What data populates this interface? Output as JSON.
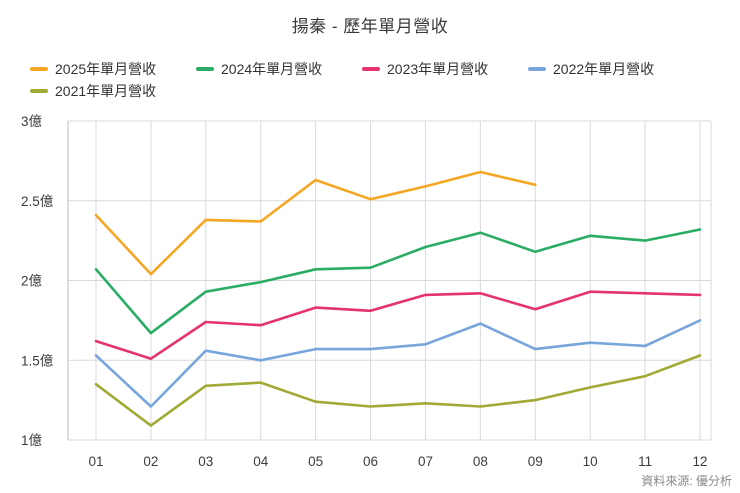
{
  "title": "揚秦 - 歷年單月營收",
  "source": "資料來源: 優分析",
  "chart_data": {
    "type": "line",
    "title": "揚秦 - 歷年單月營收",
    "categories": [
      "01",
      "02",
      "03",
      "04",
      "05",
      "06",
      "07",
      "08",
      "09",
      "10",
      "11",
      "12"
    ],
    "series": [
      {
        "name": "2025年單月營收",
        "color": "#f5a623",
        "values": [
          2.41,
          2.04,
          2.38,
          2.37,
          2.63,
          2.51,
          2.59,
          2.68,
          2.6,
          null,
          null,
          null
        ]
      },
      {
        "name": "2024年單月營收",
        "color": "#2bac64",
        "values": [
          2.07,
          1.67,
          1.93,
          1.99,
          2.07,
          2.08,
          2.21,
          2.3,
          2.18,
          2.28,
          2.25,
          2.32
        ]
      },
      {
        "name": "2023年單月營收",
        "color": "#e5336e",
        "values": [
          1.62,
          1.51,
          1.74,
          1.72,
          1.83,
          1.81,
          1.91,
          1.92,
          1.82,
          1.93,
          1.92,
          1.91
        ]
      },
      {
        "name": "2022年單月營收",
        "color": "#77a5dc",
        "values": [
          1.53,
          1.21,
          1.56,
          1.5,
          1.57,
          1.57,
          1.6,
          1.73,
          1.57,
          1.61,
          1.59,
          1.75
        ]
      },
      {
        "name": "2021年單月營收",
        "color": "#a0aa34",
        "values": [
          1.35,
          1.09,
          1.34,
          1.36,
          1.24,
          1.21,
          1.23,
          1.21,
          1.25,
          1.33,
          1.4,
          1.53
        ]
      }
    ],
    "xlabel": "",
    "ylabel": "",
    "ylim": [
      1,
      3
    ],
    "yticks": [
      1,
      1.5,
      2,
      2.5,
      3
    ],
    "ytick_labels": [
      "1億",
      "1.5億",
      "2億",
      "2.5億",
      "3億"
    ],
    "grid": true,
    "legend_position": "top"
  }
}
